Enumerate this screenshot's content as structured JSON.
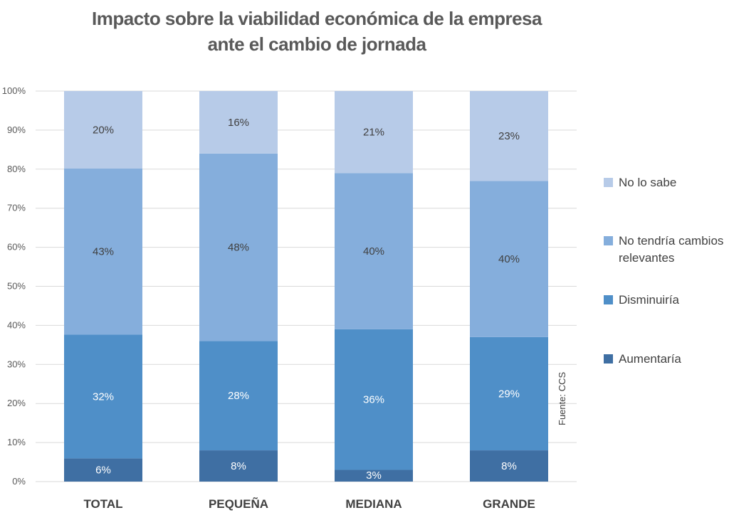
{
  "chart_data": {
    "type": "bar",
    "stacked": true,
    "percent_stacked": true,
    "title": [
      "Impacto sobre la viabilidad económica de la empresa",
      "ante el cambio de jornada"
    ],
    "xlabel": "",
    "ylabel": "",
    "ylim": [
      0,
      100
    ],
    "yticks": [
      "0%",
      "10%",
      "20%",
      "30%",
      "40%",
      "50%",
      "60%",
      "70%",
      "80%",
      "90%",
      "100%"
    ],
    "grid": true,
    "legend_placement": "right",
    "categories": [
      "TOTAL",
      "PEQUEÑA",
      "MEDIANA",
      "GRANDE"
    ],
    "series": [
      {
        "name": "Aumentaría",
        "color": "#3f6fa3",
        "values": [
          6,
          8,
          3,
          8
        ],
        "labels": [
          "6%",
          "8%",
          "3%",
          "8%"
        ]
      },
      {
        "name": "Disminuiría",
        "color": "#4f8fc8",
        "values": [
          32,
          28,
          36,
          29
        ],
        "labels": [
          "32%",
          "28%",
          "36%",
          "29%"
        ]
      },
      {
        "name": "No tendría cambios relevantes",
        "color": "#85aedc",
        "values": [
          43,
          48,
          40,
          40
        ],
        "labels": [
          "43%",
          "48%",
          "40%",
          "40%"
        ]
      },
      {
        "name": "No lo sabe",
        "color": "#b7cbe8",
        "values": [
          20,
          16,
          21,
          23
        ],
        "labels": [
          "20%",
          "16%",
          "21%",
          "23%"
        ]
      }
    ],
    "legend_order": [
      "No lo sabe",
      "No tendría cambios relevantes",
      "Disminuiría",
      "Aumentaría"
    ],
    "source": "Fuente: CCS"
  }
}
